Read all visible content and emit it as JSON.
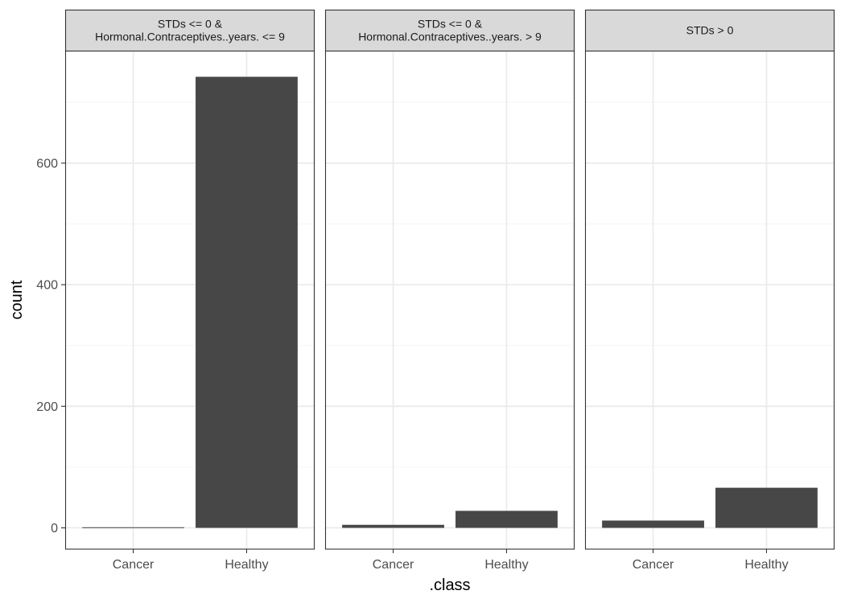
{
  "chart_data": {
    "type": "bar",
    "xlabel": ".class",
    "ylabel": "count",
    "ylim": [
      -35,
      785
    ],
    "yticks": [
      0,
      200,
      400,
      600
    ],
    "categories": [
      "Cancer",
      "Healthy"
    ],
    "panels": [
      {
        "strip_lines": [
          "STDs <= 0 &",
          "Hormonal.Contraceptives..years. <= 9"
        ],
        "values": [
          1,
          742
        ]
      },
      {
        "strip_lines": [
          "STDs <= 0 &",
          "Hormonal.Contraceptives..years. > 9"
        ],
        "values": [
          5,
          28
        ]
      },
      {
        "strip_lines": [
          "STDs > 0"
        ],
        "values": [
          12,
          66
        ]
      }
    ],
    "colors": {
      "bar": "#474747",
      "grid_major": "#ebebeb",
      "grid_minor": "#f5f5f5",
      "strip_fill": "#d9d9d9",
      "border": "#333333"
    }
  }
}
